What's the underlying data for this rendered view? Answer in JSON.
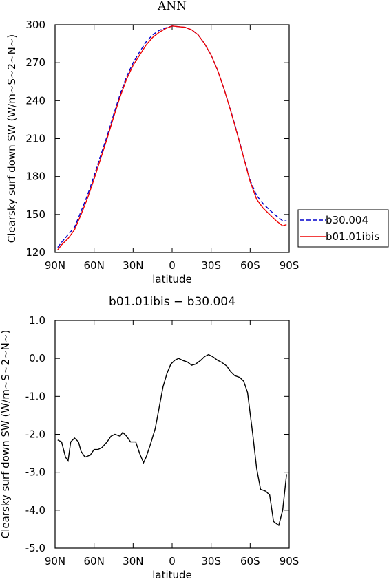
{
  "chart_data": [
    {
      "type": "line",
      "title": "ANN",
      "xlabel": "latitude",
      "ylabel": "Clearsky surf down SW (W/m~S~2~N~)",
      "x": [
        88,
        85,
        80,
        75,
        70,
        65,
        60,
        55,
        50,
        45,
        40,
        35,
        30,
        25,
        20,
        15,
        10,
        5,
        0,
        -5,
        -10,
        -15,
        -20,
        -25,
        -30,
        -35,
        -40,
        -45,
        -50,
        -55,
        -60,
        -65,
        -70,
        -75,
        -80,
        -85,
        -88
      ],
      "series": [
        {
          "name": "b30.004",
          "color": "#0000cc",
          "line_style": "dashed",
          "values": [
            124,
            128,
            134,
            140,
            152.5,
            165.5,
            180.5,
            196.5,
            212,
            229,
            245,
            259,
            270,
            278.5,
            286.5,
            292,
            295.5,
            297.5,
            299,
            298.5,
            298,
            296,
            292,
            285,
            276,
            264,
            249,
            232.5,
            214.5,
            195.5,
            177,
            165,
            158.5,
            153.5,
            149,
            145,
            145
          ]
        },
        {
          "name": "b01.01ibis",
          "color": "#ee0000",
          "line_style": "solid",
          "values": [
            122,
            126,
            131,
            138,
            150,
            163,
            178,
            194,
            210,
            227,
            243,
            257,
            268,
            276,
            284,
            290,
            294,
            297,
            299,
            298.5,
            298,
            296,
            292,
            285,
            276,
            264,
            249,
            232,
            214,
            195,
            176,
            162,
            155,
            150,
            145,
            141,
            142
          ]
        }
      ],
      "xlim": [
        90,
        -90
      ],
      "xticks": [
        {
          "value": 90,
          "label": "90N"
        },
        {
          "value": 60,
          "label": "60N"
        },
        {
          "value": 30,
          "label": "30N"
        },
        0,
        {
          "value": -30,
          "label": "30S"
        },
        {
          "value": -60,
          "label": "60S"
        },
        {
          "value": -90,
          "label": "90S"
        }
      ],
      "ylim": [
        120,
        300
      ],
      "yticks": [
        120,
        150,
        180,
        210,
        240,
        270,
        300
      ],
      "legend": "right"
    },
    {
      "type": "line",
      "title": "b01.01ibis − b30.004",
      "xlabel": "latitude",
      "ylabel": "Clearsky surf down SW (W/m~S~2~N~)",
      "x": [
        88,
        85,
        82,
        80,
        78,
        75,
        72,
        70,
        67,
        63,
        60,
        57,
        54,
        50,
        47,
        44,
        40,
        38,
        35,
        32,
        28,
        25,
        22,
        20,
        17,
        13,
        10,
        7,
        4,
        1,
        -2,
        -5,
        -8,
        -12,
        -15,
        -18,
        -22,
        -25,
        -28,
        -31,
        -35,
        -38,
        -42,
        -45,
        -48,
        -52,
        -55,
        -58,
        -62,
        -65,
        -68,
        -72,
        -75,
        -78,
        -82,
        -85,
        -88
      ],
      "series": [
        {
          "color": "#000000",
          "line_style": "solid",
          "values": [
            -2.15,
            -2.2,
            -2.6,
            -2.7,
            -2.2,
            -2.1,
            -2.2,
            -2.45,
            -2.6,
            -2.55,
            -2.4,
            -2.4,
            -2.35,
            -2.2,
            -2.05,
            -2.0,
            -2.05,
            -1.95,
            -2.05,
            -2.2,
            -2.2,
            -2.5,
            -2.75,
            -2.6,
            -2.3,
            -1.85,
            -1.3,
            -0.75,
            -0.4,
            -0.15,
            -0.05,
            0.0,
            -0.05,
            -0.1,
            -0.18,
            -0.15,
            -0.05,
            0.05,
            0.1,
            0.05,
            -0.05,
            -0.1,
            -0.2,
            -0.35,
            -0.45,
            -0.5,
            -0.6,
            -0.9,
            -2.0,
            -2.9,
            -3.45,
            -3.5,
            -3.6,
            -4.3,
            -4.4,
            -4.0,
            -3.05
          ]
        }
      ],
      "xlim": [
        90,
        -90
      ],
      "xticks": [
        {
          "value": 90,
          "label": "90N"
        },
        {
          "value": 60,
          "label": "60N"
        },
        {
          "value": 30,
          "label": "30N"
        },
        0,
        {
          "value": -30,
          "label": "30S"
        },
        {
          "value": -60,
          "label": "60S"
        },
        {
          "value": -90,
          "label": "90S"
        }
      ],
      "ylim": [
        -5,
        1
      ],
      "yticks": [
        {
          "value": -5,
          "label": "-5.0"
        },
        {
          "value": -4,
          "label": "-4.0"
        },
        {
          "value": -3,
          "label": "-3.0"
        },
        {
          "value": -2,
          "label": "-2.0"
        },
        {
          "value": -1,
          "label": "-1.0"
        },
        {
          "value": 0,
          "label": "0.0"
        },
        {
          "value": 1,
          "label": "1.0"
        }
      ]
    }
  ]
}
